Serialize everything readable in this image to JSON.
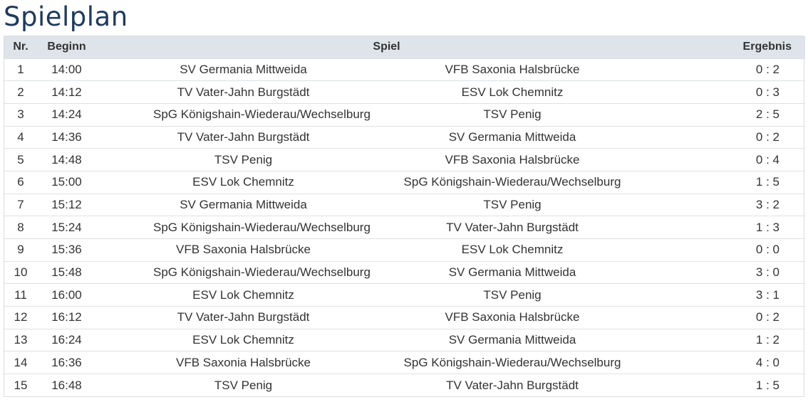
{
  "page": {
    "title": "Spielplan"
  },
  "table": {
    "headers": {
      "nr": "Nr.",
      "beginn": "Beginn",
      "spiel": "Spiel",
      "ergebnis": "Ergebnis"
    },
    "rows": [
      {
        "nr": "1",
        "beginn": "14:00",
        "home": "SV Germania Mittweida",
        "away": "VFB Saxonia Halsbrücke",
        "result": "0 : 2"
      },
      {
        "nr": "2",
        "beginn": "14:12",
        "home": "TV Vater-Jahn Burgstädt",
        "away": "ESV Lok Chemnitz",
        "result": "0 : 3"
      },
      {
        "nr": "3",
        "beginn": "14:24",
        "home": "SpG Königshain-Wiederau/Wechselburg",
        "away": "TSV Penig",
        "result": "2 : 5"
      },
      {
        "nr": "4",
        "beginn": "14:36",
        "home": "TV Vater-Jahn Burgstädt",
        "away": "SV Germania Mittweida",
        "result": "0 : 2"
      },
      {
        "nr": "5",
        "beginn": "14:48",
        "home": "TSV Penig",
        "away": "VFB Saxonia Halsbrücke",
        "result": "0 : 4"
      },
      {
        "nr": "6",
        "beginn": "15:00",
        "home": "ESV Lok Chemnitz",
        "away": "SpG Königshain-Wiederau/Wechselburg",
        "result": "1 : 5"
      },
      {
        "nr": "7",
        "beginn": "15:12",
        "home": "SV Germania Mittweida",
        "away": "TSV Penig",
        "result": "3 : 2"
      },
      {
        "nr": "8",
        "beginn": "15:24",
        "home": "SpG Königshain-Wiederau/Wechselburg",
        "away": "TV Vater-Jahn Burgstädt",
        "result": "1 : 3"
      },
      {
        "nr": "9",
        "beginn": "15:36",
        "home": "VFB Saxonia Halsbrücke",
        "away": "ESV Lok Chemnitz",
        "result": "0 : 0"
      },
      {
        "nr": "10",
        "beginn": "15:48",
        "home": "SpG Königshain-Wiederau/Wechselburg",
        "away": "SV Germania Mittweida",
        "result": "3 : 0"
      },
      {
        "nr": "11",
        "beginn": "16:00",
        "home": "ESV Lok Chemnitz",
        "away": "TSV Penig",
        "result": "3 : 1"
      },
      {
        "nr": "12",
        "beginn": "16:12",
        "home": "TV Vater-Jahn Burgstädt",
        "away": "VFB Saxonia Halsbrücke",
        "result": "0 : 2"
      },
      {
        "nr": "13",
        "beginn": "16:24",
        "home": "ESV Lok Chemnitz",
        "away": "SV Germania Mittweida",
        "result": "1 : 2"
      },
      {
        "nr": "14",
        "beginn": "16:36",
        "home": "VFB Saxonia Halsbrücke",
        "away": "SpG Königshain-Wiederau/Wechselburg",
        "result": "4 : 0"
      },
      {
        "nr": "15",
        "beginn": "16:48",
        "home": "TSV Penig",
        "away": "TV Vater-Jahn Burgstädt",
        "result": "1 : 5"
      }
    ]
  },
  "colors": {
    "title": "#1f3a5f",
    "header_background": "#dfe4ea",
    "row_border": "#dde1e6",
    "text": "#333333"
  }
}
